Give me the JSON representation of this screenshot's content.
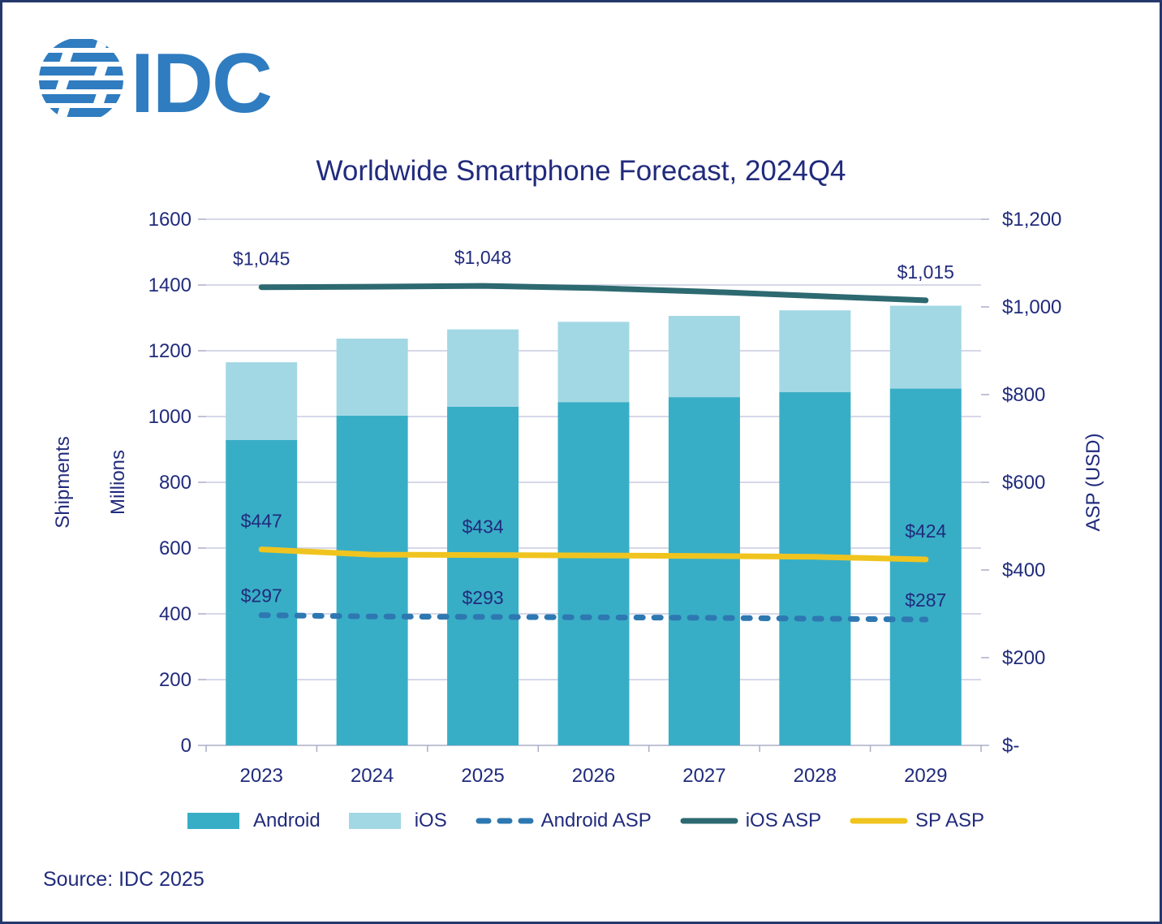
{
  "page": {
    "logo_text": "IDC",
    "source": "Source: IDC 2025"
  },
  "colors": {
    "android": "#38AEC6",
    "ios": "#A2D8E4",
    "android_asp": "#2E78B2",
    "ios_asp": "#2D6970",
    "sp_asp": "#F0C41F",
    "text": "#212B7C",
    "grid": "#C9CBE2",
    "axis": "#ABAEC8",
    "logo": "#2F7CC0",
    "border": "#24386B"
  },
  "chart_data": {
    "type": "combo-bar-line",
    "title": "Worldwide Smartphone Forecast, 2024Q4",
    "categories": [
      "2023",
      "2024",
      "2025",
      "2026",
      "2027",
      "2028",
      "2029"
    ],
    "left_axis": {
      "title_outer": "Shipments",
      "title_inner": "Millions",
      "min": 0,
      "max": 1600,
      "step": 200,
      "tick_labels": [
        "0",
        "200",
        "400",
        "600",
        "800",
        "1000",
        "1200",
        "1400",
        "1600"
      ]
    },
    "right_axis": {
      "title": "ASP (USD)",
      "min": 0,
      "max": 1200,
      "step": 200,
      "tick_labels": [
        "$-",
        "$200",
        "$400",
        "$600",
        "$800",
        "$1,000",
        "$1,200"
      ]
    },
    "bar_series": [
      {
        "name": "Android",
        "color_key": "android",
        "stack": "shipments",
        "values": [
          929,
          1003,
          1030,
          1044,
          1059,
          1074,
          1085
        ]
      },
      {
        "name": "iOS",
        "color_key": "ios",
        "stack": "shipments",
        "values": [
          236,
          234,
          235,
          244,
          247,
          249,
          252
        ]
      }
    ],
    "line_series": [
      {
        "name": "Android ASP",
        "color_key": "android_asp",
        "style": "dashed",
        "axis": "right",
        "values": [
          297,
          294,
          293,
          292,
          291,
          289,
          287
        ],
        "point_labels": [
          "$297",
          null,
          "$293",
          null,
          null,
          null,
          "$287"
        ],
        "label_offset": -16
      },
      {
        "name": "iOS ASP",
        "color_key": "ios_asp",
        "style": "solid",
        "axis": "right",
        "values": [
          1045,
          1046,
          1048,
          1043,
          1035,
          1025,
          1015
        ],
        "point_labels": [
          "$1,045",
          null,
          "$1,048",
          null,
          null,
          null,
          "$1,015"
        ],
        "label_offset": -27
      },
      {
        "name": "SP ASP",
        "color_key": "sp_asp",
        "style": "solid",
        "axis": "right",
        "values": [
          447,
          435,
          434,
          433,
          432,
          430,
          424
        ],
        "point_labels": [
          "$447",
          null,
          "$434",
          null,
          null,
          null,
          "$424"
        ],
        "label_offset": -27
      }
    ],
    "legend_position": "bottom",
    "grid": true
  }
}
